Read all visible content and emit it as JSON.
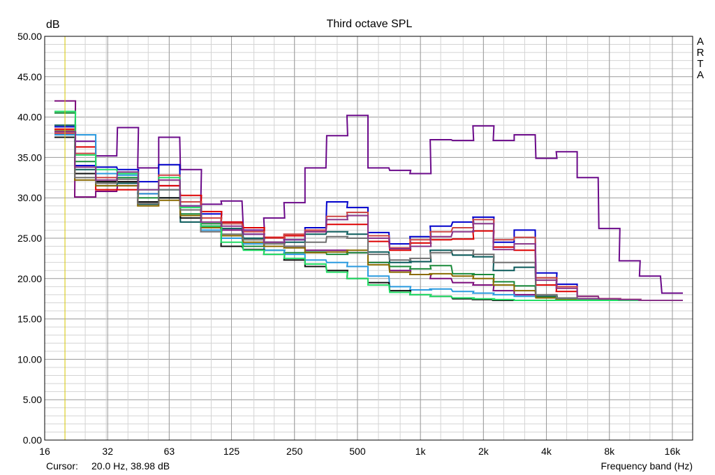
{
  "chart_data": {
    "type": "line",
    "title": "Third octave SPL",
    "ylabel": "dB",
    "xlabel": "Frequency band (Hz)",
    "y_scale": "linear",
    "x_scale": "log",
    "ylim": [
      0,
      50
    ],
    "xlim": [
      16,
      20000
    ],
    "grid": true,
    "y_ticks": [
      "0.00",
      "5.00",
      "10.00",
      "15.00",
      "20.00",
      "25.00",
      "30.00",
      "35.00",
      "40.00",
      "45.00",
      "50.00"
    ],
    "x_ticks": [
      {
        "value": 16,
        "label": "16"
      },
      {
        "value": 32,
        "label": "32"
      },
      {
        "value": 63,
        "label": "63"
      },
      {
        "value": 125,
        "label": "125"
      },
      {
        "value": 250,
        "label": "250"
      },
      {
        "value": 500,
        "label": "500"
      },
      {
        "value": 1000,
        "label": "1k"
      },
      {
        "value": 2000,
        "label": "2k"
      },
      {
        "value": 4000,
        "label": "4k"
      },
      {
        "value": 8000,
        "label": "8k"
      },
      {
        "value": 16000,
        "label": "16k"
      }
    ],
    "bands_hz": [
      20,
      25,
      31.5,
      40,
      50,
      63,
      80,
      100,
      125,
      160,
      200,
      250,
      315,
      400,
      500,
      630,
      800,
      1000,
      1250,
      1600,
      2000,
      2500,
      3150,
      4000,
      5000,
      6300,
      8000,
      10000,
      12500,
      16000
    ],
    "cursor_x": 20,
    "series": [
      {
        "color": "#7a0a7a",
        "values": [
          42.0,
          30.1,
          30.8,
          31.5,
          30.5,
          31.5,
          28.5,
          26.5,
          26.0,
          25.0,
          24.5,
          24.0,
          23.5,
          23.5,
          23.2,
          22.0,
          21.0,
          20.5,
          20.0,
          19.5,
          19.2,
          18.5,
          18.0,
          17.8,
          17.6,
          17.5,
          17.4,
          17.4,
          17.3,
          17.3
        ]
      },
      {
        "color": "#6b0a8a",
        "values": [
          38.0,
          37.0,
          35.2,
          38.7,
          33.7,
          37.5,
          33.5,
          29.2,
          29.6,
          26.0,
          27.5,
          29.4,
          33.7,
          37.7,
          40.2,
          33.7,
          33.4,
          33.0,
          37.2,
          37.1,
          38.9,
          37.1,
          37.8,
          34.9,
          35.7,
          32.5,
          26.2,
          22.2,
          20.3,
          18.2
        ]
      },
      {
        "color": "#0000cc",
        "values": [
          38.8,
          34.0,
          33.8,
          33.5,
          32.0,
          34.1,
          29.0,
          28.0,
          27.0,
          25.5,
          25.0,
          24.8,
          26.3,
          29.5,
          28.8,
          25.7,
          24.3,
          25.2,
          26.5,
          27.0,
          27.6,
          24.5,
          26.0,
          20.7,
          19.3,
          17.8,
          17.5,
          17.4,
          17.3,
          17.3
        ]
      },
      {
        "color": "#dd0000",
        "values": [
          38.5,
          36.3,
          31.0,
          31.0,
          29.5,
          31.5,
          30.3,
          28.3,
          27.0,
          26.3,
          25.1,
          25.3,
          25.8,
          26.7,
          26.7,
          24.6,
          23.5,
          24.4,
          24.8,
          24.9,
          25.9,
          23.9,
          23.5,
          19.2,
          18.4,
          17.8,
          17.5,
          17.4,
          17.3,
          17.3
        ]
      },
      {
        "color": "#cc4444",
        "values": [
          38.0,
          35.5,
          32.5,
          32.0,
          30.5,
          32.8,
          29.5,
          27.5,
          26.8,
          25.8,
          25.0,
          25.5,
          26.0,
          27.7,
          28.2,
          25.3,
          23.8,
          24.8,
          25.8,
          26.3,
          27.3,
          24.8,
          25.1,
          20.1,
          19.0,
          17.8,
          17.5,
          17.4,
          17.3,
          17.3
        ]
      },
      {
        "color": "#0a5a5a",
        "values": [
          39.0,
          33.5,
          31.5,
          31.8,
          29.2,
          30.0,
          27.0,
          26.5,
          26.2,
          25.0,
          24.5,
          24.5,
          25.5,
          25.8,
          25.5,
          23.3,
          22.0,
          22.1,
          23.5,
          22.9,
          22.7,
          21.0,
          21.4,
          17.8,
          17.5,
          17.3,
          17.3,
          17.3,
          17.3,
          17.3
        ]
      },
      {
        "color": "#1a8a3a",
        "values": [
          40.5,
          34.5,
          32.0,
          32.5,
          30.0,
          31.0,
          28.0,
          26.8,
          25.0,
          24.0,
          23.5,
          23.2,
          23.3,
          23.0,
          23.2,
          22.0,
          21.5,
          21.2,
          21.6,
          20.6,
          20.5,
          19.6,
          19.1,
          17.7,
          17.5,
          17.3,
          17.3,
          17.3,
          17.3,
          17.3
        ]
      },
      {
        "color": "#2a9adf",
        "values": [
          37.8,
          37.8,
          33.0,
          32.8,
          30.5,
          31.0,
          29.0,
          26.0,
          25.0,
          24.3,
          23.5,
          23.0,
          22.3,
          22.0,
          21.5,
          20.3,
          19.0,
          18.6,
          18.7,
          18.4,
          18.2,
          18.0,
          17.8,
          17.6,
          17.5,
          17.4,
          17.3,
          17.3,
          17.3,
          17.3
        ]
      },
      {
        "color": "#111111",
        "values": [
          37.5,
          33.0,
          32.0,
          32.0,
          29.5,
          30.0,
          27.5,
          26.5,
          24.0,
          23.6,
          23.0,
          22.3,
          21.5,
          21.0,
          20.0,
          19.5,
          18.5,
          18.0,
          17.8,
          17.5,
          17.4,
          17.3,
          17.3,
          17.3,
          17.3,
          17.3,
          17.3,
          17.3,
          17.3,
          17.3
        ]
      },
      {
        "color": "#8a6a00",
        "values": [
          38.3,
          32.2,
          31.5,
          31.5,
          29.0,
          29.7,
          27.8,
          26.3,
          25.3,
          24.5,
          24.0,
          23.8,
          23.2,
          23.3,
          23.5,
          21.7,
          20.8,
          20.5,
          20.6,
          20.3,
          20.0,
          19.2,
          18.5,
          17.6,
          17.4,
          17.3,
          17.3,
          17.3,
          17.3,
          17.3
        ]
      },
      {
        "color": "#707070",
        "values": [
          38.2,
          32.5,
          31.8,
          32.3,
          29.3,
          31.0,
          28.5,
          25.8,
          25.5,
          24.8,
          24.3,
          24.0,
          24.5,
          25.2,
          25.0,
          23.0,
          22.3,
          22.5,
          23.2,
          23.5,
          23.0,
          22.0,
          22.0,
          18.0,
          17.6,
          17.4,
          17.3,
          17.3,
          17.3,
          17.3
        ]
      },
      {
        "color": "#22dd66",
        "values": [
          40.7,
          35.3,
          33.5,
          33.0,
          31.0,
          32.5,
          28.8,
          26.5,
          24.5,
          23.5,
          23.0,
          22.5,
          21.8,
          20.8,
          20.0,
          19.2,
          18.3,
          18.0,
          17.8,
          17.6,
          17.5,
          17.4,
          17.3,
          17.3,
          17.3,
          17.3,
          17.3,
          17.3,
          17.3,
          17.3
        ]
      },
      {
        "color": "#883388",
        "values": [
          38.2,
          33.8,
          32.2,
          33.2,
          31.0,
          32.2,
          29.0,
          27.0,
          26.5,
          25.5,
          24.5,
          24.8,
          25.8,
          27.3,
          27.8,
          25.0,
          23.7,
          24.0,
          25.2,
          25.8,
          26.8,
          23.6,
          24.3,
          19.8,
          18.8,
          17.8,
          17.5,
          17.4,
          17.3,
          17.3
        ]
      }
    ]
  },
  "watermark_text": "ARTA",
  "cursor": {
    "label": "Cursor:",
    "value": "20.0 Hz, 38.98 dB"
  }
}
